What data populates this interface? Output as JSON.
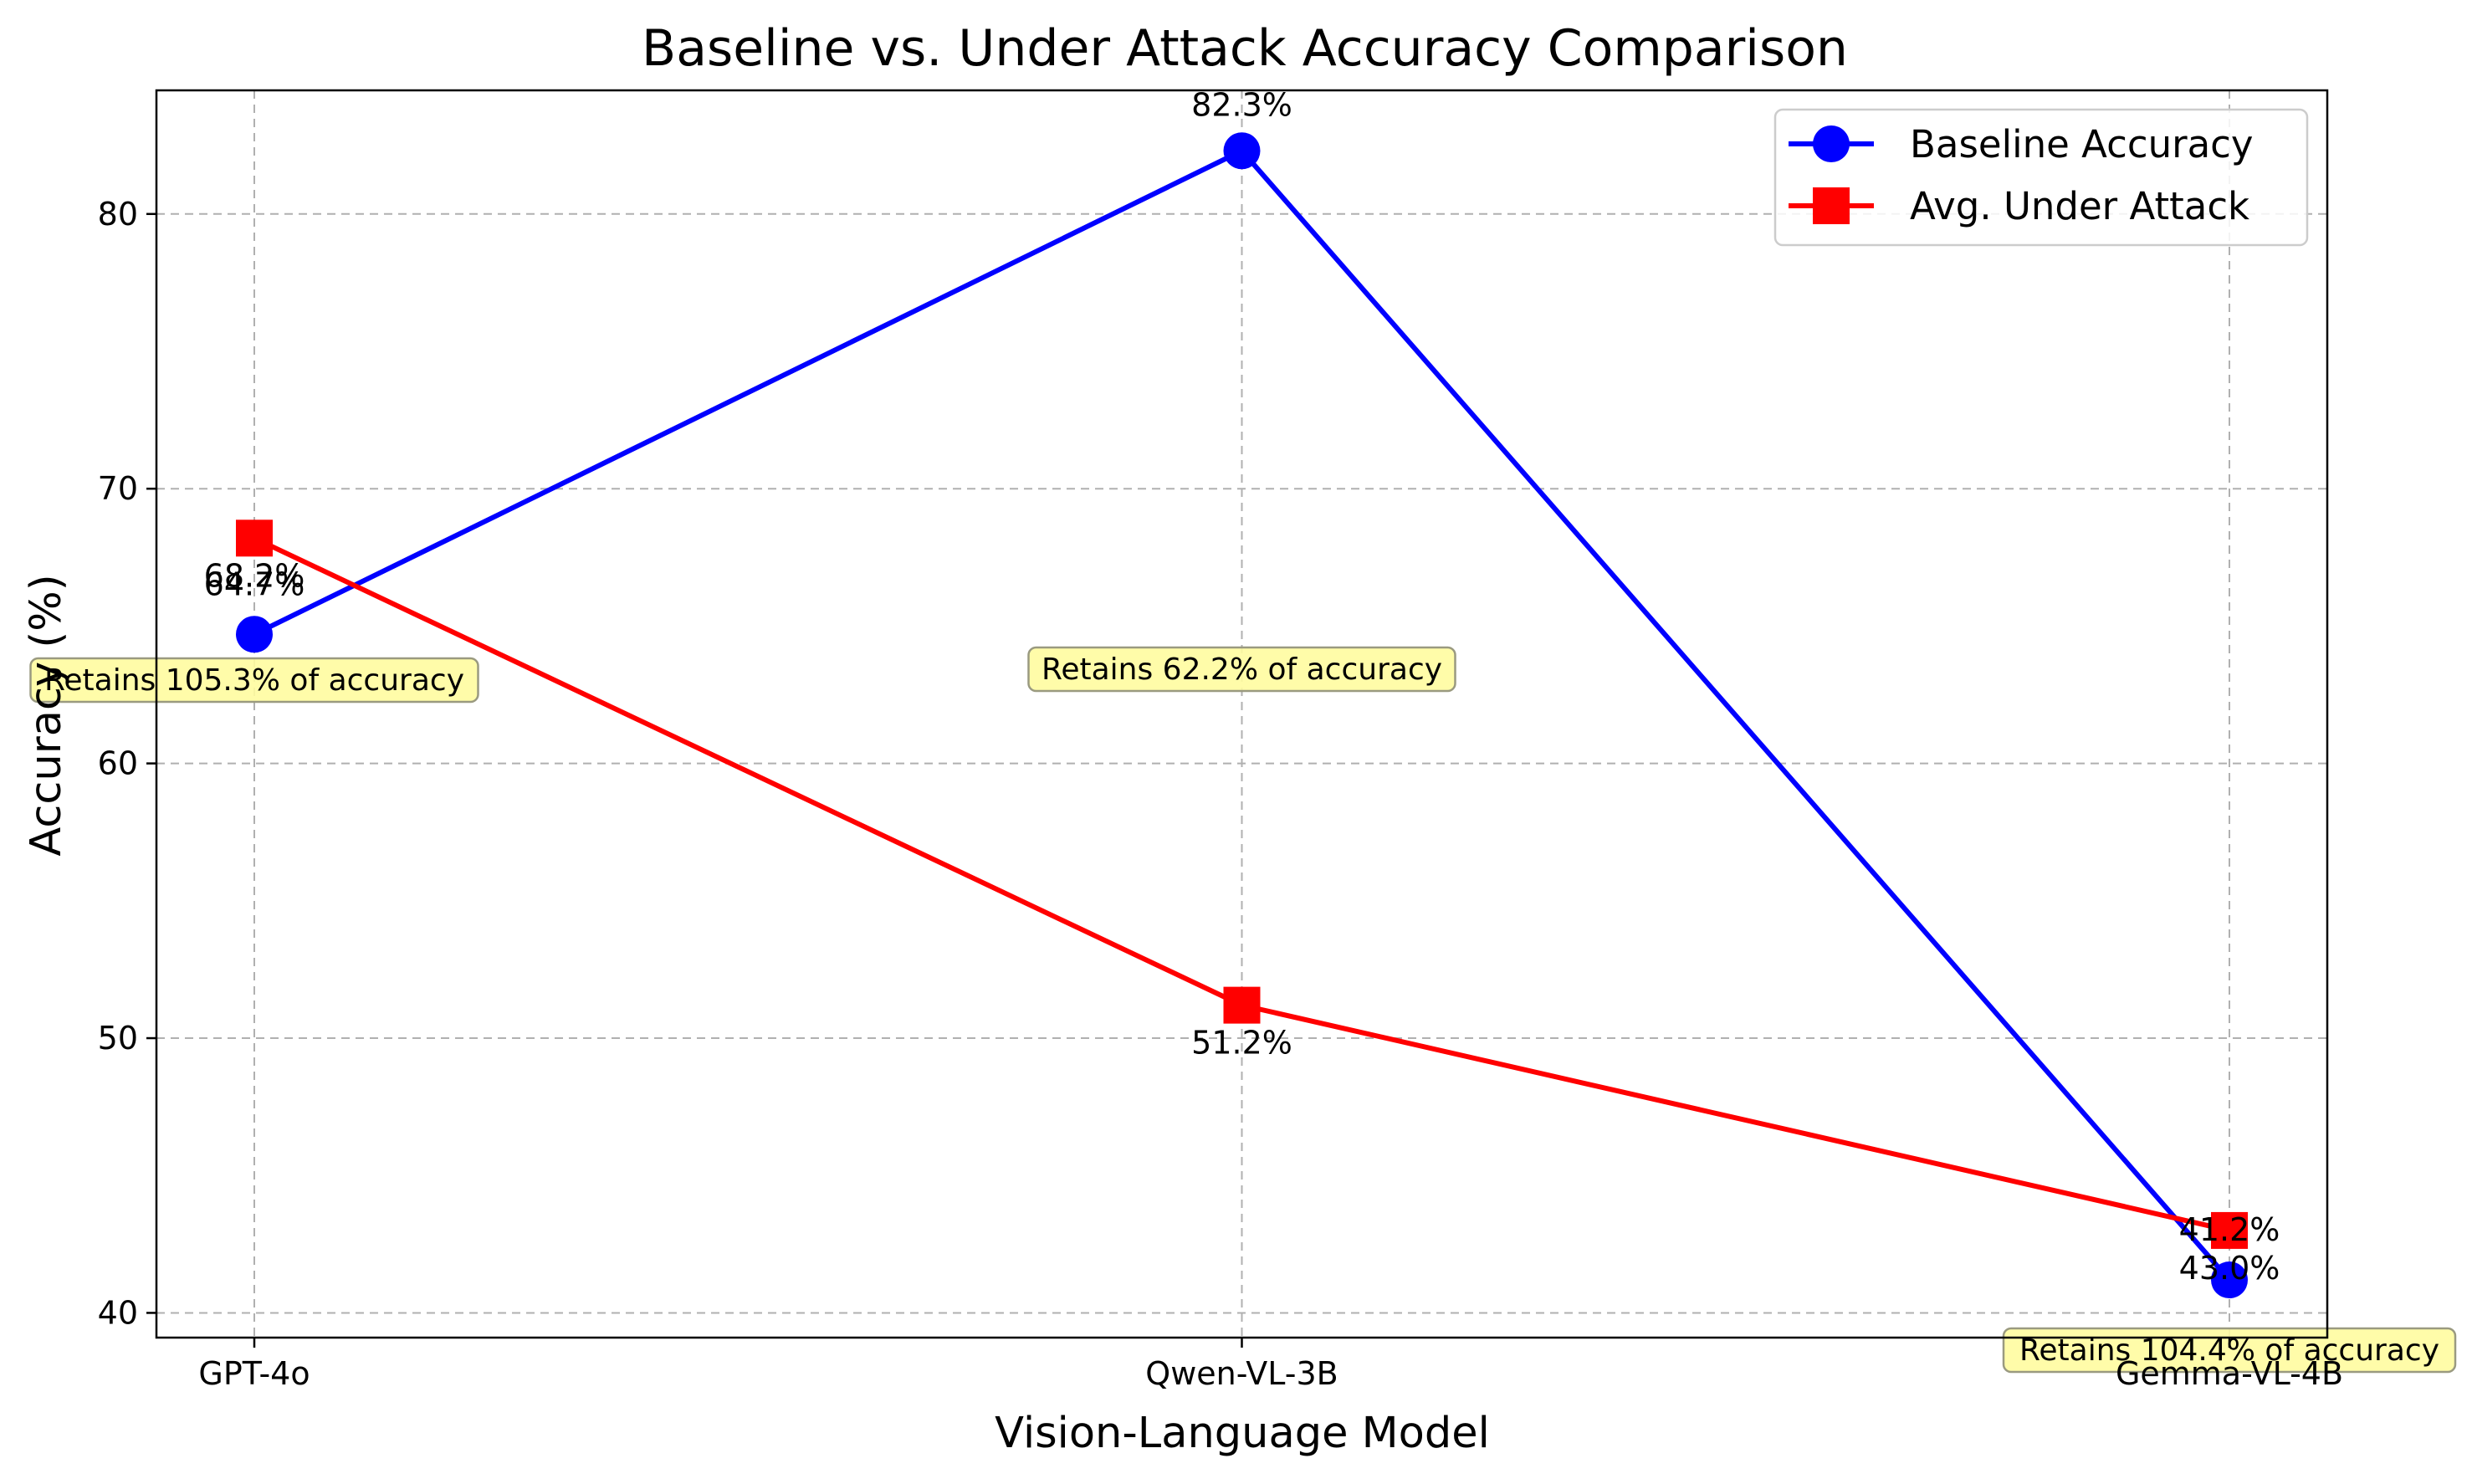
{
  "chart_data": {
    "type": "line",
    "title": "Baseline vs. Under Attack Accuracy Comparison",
    "xlabel": "Vision-Language Model",
    "ylabel": "Accuracy (%)",
    "categories": [
      "GPT-4o",
      "Qwen-VL-3B",
      "Gemma-VL-4B"
    ],
    "ylim": [
      39.1,
      84.5
    ],
    "yticks": [
      40,
      50,
      60,
      70,
      80
    ],
    "grid": true,
    "legend_position": "upper right",
    "series": [
      {
        "name": "Baseline Accuracy",
        "color": "#0000ff",
        "marker": "circle",
        "values": [
          64.7,
          82.3,
          41.2
        ],
        "labels": [
          "64.7%",
          "82.3%",
          "41.2%"
        ]
      },
      {
        "name": "Avg. Under Attack",
        "color": "#ff0000",
        "marker": "square",
        "values": [
          68.2,
          51.2,
          43.0
        ],
        "labels": [
          "68.2%",
          "51.2%",
          "43.0%"
        ]
      }
    ],
    "annotations": [
      "Retains 105.3% of accuracy",
      "Retains 62.2% of accuracy",
      "Retains 104.4% of accuracy"
    ]
  }
}
